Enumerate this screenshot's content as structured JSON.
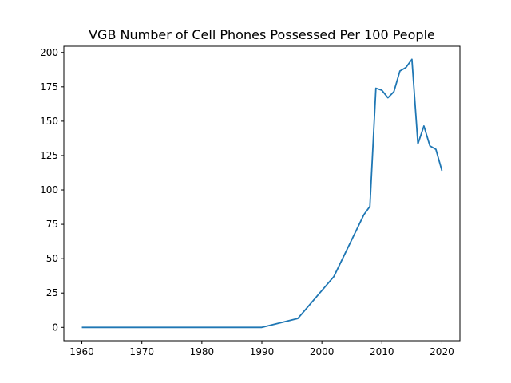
{
  "chart_data": {
    "type": "line",
    "title": "VGB Number of Cell Phones Possessed Per 100 People",
    "xlabel": "",
    "ylabel": "",
    "xlim": [
      1957.0,
      2023.0
    ],
    "ylim": [
      -9.7,
      204.5
    ],
    "grid": false,
    "xticks": [
      1960,
      1970,
      1980,
      1990,
      2000,
      2010,
      2020
    ],
    "yticks": [
      0,
      25,
      50,
      75,
      100,
      125,
      150,
      175,
      200
    ],
    "line_color": "#1f77b4",
    "series": [
      {
        "name": "",
        "x": [
          1960,
          1990,
          1996,
          2002,
          2007,
          2008,
          2009,
          2010,
          2011,
          2012,
          2013,
          2014,
          2015,
          2016,
          2017,
          2018,
          2019,
          2020
        ],
        "y": [
          0,
          0,
          6.5,
          37,
          82,
          88,
          174,
          172.5,
          167,
          171.5,
          186.5,
          189,
          195,
          133.5,
          146.5,
          132,
          129.5,
          114
        ]
      }
    ]
  }
}
